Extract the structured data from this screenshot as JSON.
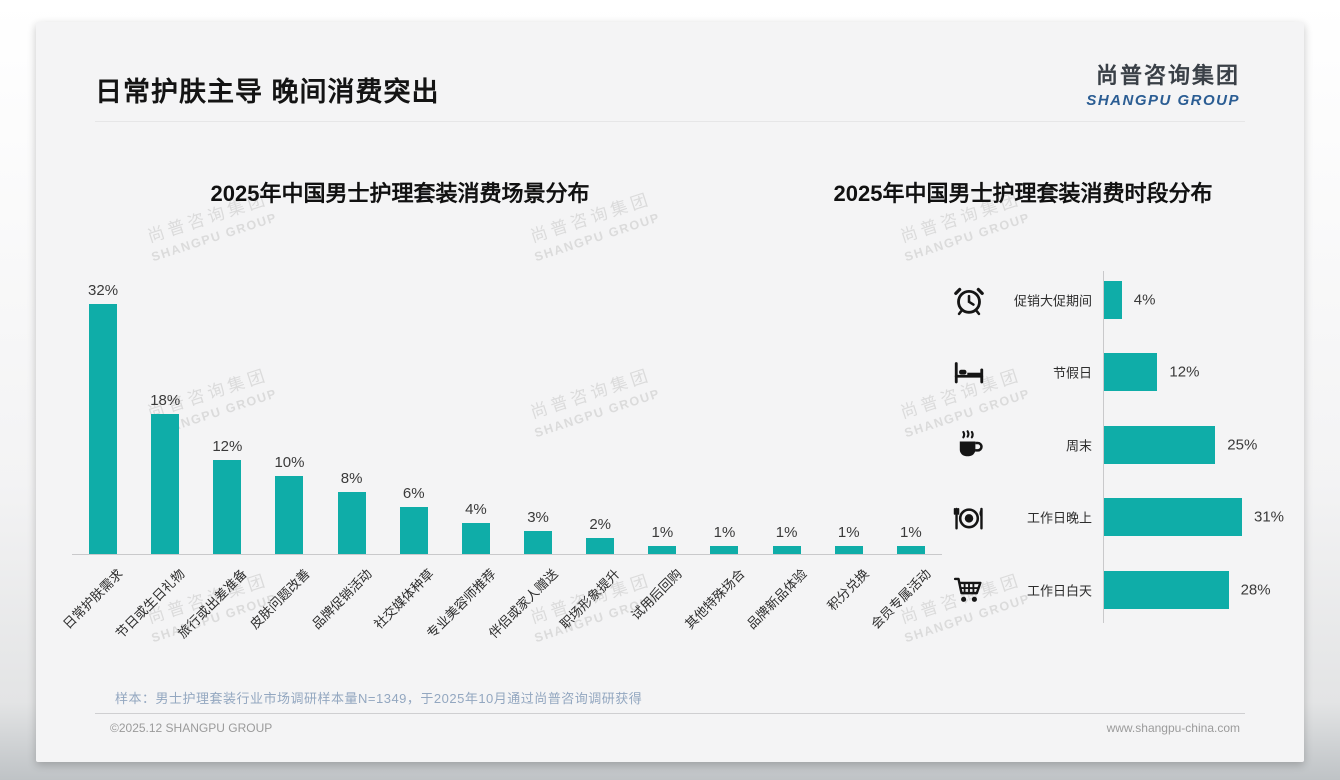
{
  "page": {
    "title": "日常护肤主导 晚间消费突出",
    "logo": {
      "cn": "尚普咨询集团",
      "en": "SHANGPU GROUP"
    },
    "watermark": {
      "line1": "尚普咨询集团",
      "line2": "SHANGPU GROUP"
    },
    "footnote": "样本：男士护理套装行业市场调研样本量N=1349，于2025年10月通过尚普咨询调研获得",
    "footer": {
      "left": "©2025.12 SHANGPU GROUP",
      "right": "www.shangpu-china.com"
    }
  },
  "colors": {
    "accent": "#0FADA8",
    "logo_blue": "#2B5D93",
    "footnote_blue_gray": "#93A7C0"
  },
  "chart_data": [
    {
      "type": "bar",
      "orientation": "vertical",
      "title": "2025年中国男士护理套装消费场景分布",
      "categories": [
        "日常护肤需求",
        "节日或生日礼物",
        "旅行或出差准备",
        "皮肤问题改善",
        "品牌促销活动",
        "社交媒体种草",
        "专业美容师推荐",
        "伴侣或家人赠送",
        "职场形象提升",
        "试用后回购",
        "其他特殊场合",
        "品牌新品体验",
        "积分兑换",
        "会员专属活动"
      ],
      "values": [
        32,
        18,
        12,
        10,
        8,
        6,
        4,
        3,
        2,
        1,
        1,
        1,
        1,
        1
      ],
      "unit": "%",
      "value_labels_visible": true,
      "grid": false,
      "bar_color": "#0FADA8"
    },
    {
      "type": "bar",
      "orientation": "horizontal",
      "title": "2025年中国男士护理套装消费时段分布",
      "categories": [
        "促销大促期间",
        "节假日",
        "周末",
        "工作日晚上",
        "工作日白天"
      ],
      "values": [
        4,
        12,
        25,
        31,
        28
      ],
      "icons": [
        "alarm-clock-icon",
        "bed-icon",
        "coffee-icon",
        "dining-icon",
        "shopping-cart-icon"
      ],
      "unit": "%",
      "value_labels_visible": true,
      "grid": false,
      "bar_color": "#0FADA8"
    }
  ]
}
